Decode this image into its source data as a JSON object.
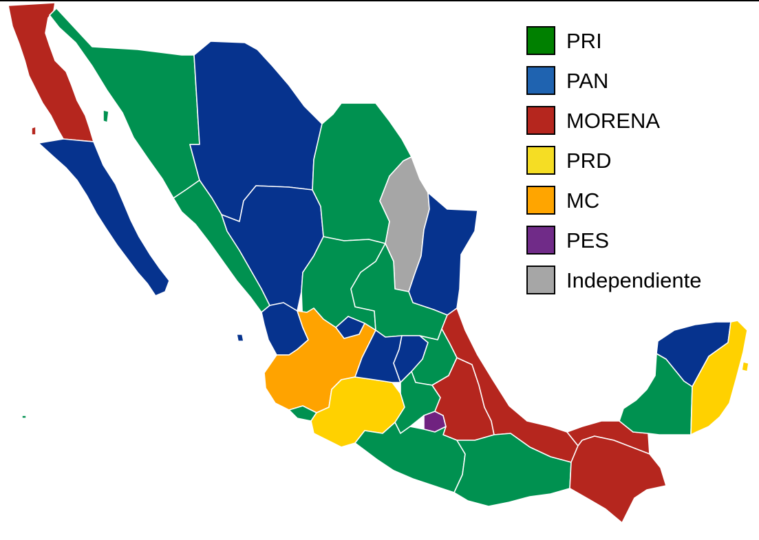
{
  "colors": {
    "PRI": "#009150",
    "PAN": "#06338e",
    "MORENA": "#b5261e",
    "PRD": "#ffd100",
    "MC": "#ffa300",
    "PES": "#702280",
    "Independiente": "#a6a6a6"
  },
  "legend": [
    {
      "label": "PRI",
      "swatch": "#008000"
    },
    {
      "label": "PAN",
      "swatch": "#1f63b0"
    },
    {
      "label": "MORENA",
      "swatch": "#b5261e"
    },
    {
      "label": "PRD",
      "swatch": "#f5dd24"
    },
    {
      "label": "MC",
      "swatch": "#ffa500"
    },
    {
      "label": "PES",
      "swatch": "#702b88"
    },
    {
      "label": "Independiente",
      "swatch": "#a6a6a6"
    }
  ],
  "regions": [
    {
      "name": "baja-california",
      "party": "MORENA"
    },
    {
      "name": "baja-california-sur",
      "party": "PAN"
    },
    {
      "name": "sonora",
      "party": "PRI"
    },
    {
      "name": "chihuahua",
      "party": "PAN"
    },
    {
      "name": "sinaloa",
      "party": "PRI"
    },
    {
      "name": "durango",
      "party": "PAN"
    },
    {
      "name": "coahuila",
      "party": "PRI"
    },
    {
      "name": "nuevo-leon",
      "party": "Independiente"
    },
    {
      "name": "tamaulipas",
      "party": "PAN"
    },
    {
      "name": "nayarit",
      "party": "PAN"
    },
    {
      "name": "zacatecas",
      "party": "PRI"
    },
    {
      "name": "aguascalientes",
      "party": "PAN"
    },
    {
      "name": "san-luis-potosi",
      "party": "PRI"
    },
    {
      "name": "jalisco",
      "party": "MC"
    },
    {
      "name": "colima",
      "party": "PRI"
    },
    {
      "name": "michoacan",
      "party": "PRD"
    },
    {
      "name": "guanajuato",
      "party": "PAN"
    },
    {
      "name": "queretaro",
      "party": "PAN"
    },
    {
      "name": "hidalgo",
      "party": "PRI"
    },
    {
      "name": "estado-de-mexico",
      "party": "PRI"
    },
    {
      "name": "tlaxcala",
      "party": "PRI"
    },
    {
      "name": "morelos",
      "party": "PES"
    },
    {
      "name": "puebla",
      "party": "MORENA"
    },
    {
      "name": "veracruz",
      "party": "MORENA"
    },
    {
      "name": "guerrero",
      "party": "PRI"
    },
    {
      "name": "oaxaca",
      "party": "PRI"
    },
    {
      "name": "tabasco",
      "party": "MORENA"
    },
    {
      "name": "chiapas",
      "party": "MORENA"
    },
    {
      "name": "campeche",
      "party": "PRI"
    },
    {
      "name": "yucatan",
      "party": "PAN"
    },
    {
      "name": "quintana-roo",
      "party": "PRD"
    }
  ]
}
